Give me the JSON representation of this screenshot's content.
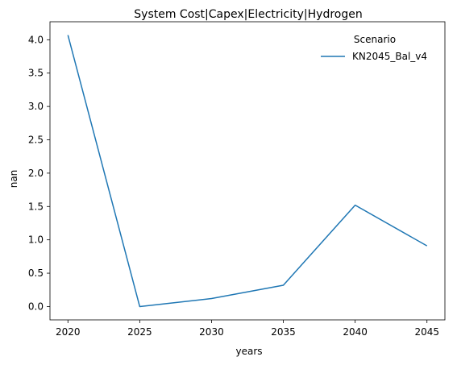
{
  "chart_data": {
    "type": "line",
    "title": "System Cost|Capex|Electricity|Hydrogen",
    "xlabel": "years",
    "ylabel": "nan",
    "x": [
      2020,
      2025,
      2030,
      2035,
      2040,
      2045
    ],
    "xticks": [
      "2020",
      "2025",
      "2030",
      "2035",
      "2040",
      "2045"
    ],
    "yticks": [
      "0.0",
      "0.5",
      "1.0",
      "1.5",
      "2.0",
      "2.5",
      "3.0",
      "3.5",
      "4.0"
    ],
    "xlim": [
      2018.75,
      2046.25
    ],
    "ylim": [
      -0.2,
      4.27
    ],
    "grid": false,
    "legend": {
      "title": "Scenario",
      "placement": "top-right"
    },
    "series": [
      {
        "name": "KN2045_Bal_v4",
        "color": "#1f77b4",
        "values": [
          4.07,
          0.0,
          0.12,
          0.32,
          1.52,
          0.91
        ]
      }
    ]
  }
}
